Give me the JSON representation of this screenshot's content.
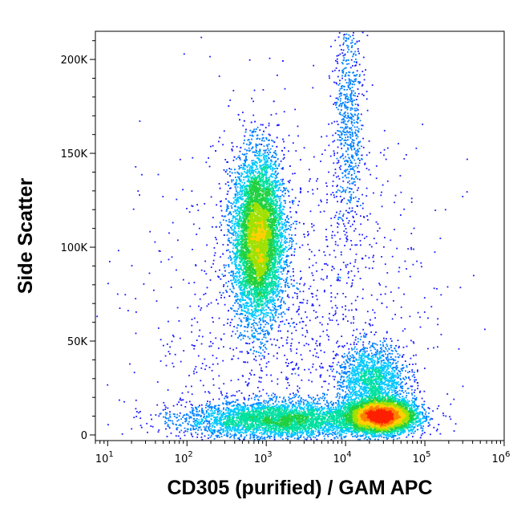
{
  "chart_data": {
    "type": "scatter",
    "subtype": "flow cytometry density dot plot",
    "xlabel": "CD305 (purified) / GAM APC",
    "ylabel": "Side Scatter",
    "x_scale": "log",
    "x_range": [
      7,
      1000000
    ],
    "y_range": [
      -3000,
      215000
    ],
    "x_ticks": [
      {
        "value": 10,
        "base": "10",
        "exp": "1"
      },
      {
        "value": 100,
        "base": "10",
        "exp": "2"
      },
      {
        "value": 1000,
        "base": "10",
        "exp": "3"
      },
      {
        "value": 10000,
        "base": "10",
        "exp": "4"
      },
      {
        "value": 100000,
        "base": "10",
        "exp": "5"
      },
      {
        "value": 1000000,
        "base": "10",
        "exp": "6"
      }
    ],
    "y_ticks": [
      {
        "value": 0,
        "label": "0"
      },
      {
        "value": 50000,
        "label": "50K"
      },
      {
        "value": 100000,
        "label": "100K"
      },
      {
        "value": 150000,
        "label": "150K"
      },
      {
        "value": 200000,
        "label": "200K"
      }
    ],
    "density_colormap": [
      "#1a1aff",
      "#0080ff",
      "#00c8ff",
      "#00e0a0",
      "#20d040",
      "#a0e000",
      "#ffd000",
      "#ff8000",
      "#ff2000"
    ],
    "populations": [
      {
        "name": "CD305-positive cluster",
        "x_center": 800,
        "y_center": 105000,
        "x_spread_log": 0.16,
        "y_spread": 22000,
        "count": 9000
      },
      {
        "name": "bright low-SSC cluster",
        "x_center": 28000,
        "y_center": 10000,
        "x_spread_log": 0.22,
        "y_spread": 4500,
        "count": 5500
      },
      {
        "name": "intermediate-SSC cluster",
        "x_center": 22000,
        "y_center": 30000,
        "x_spread_log": 0.22,
        "y_spread": 9000,
        "count": 1600
      },
      {
        "name": "dim low-SSC band",
        "x_center": 1500,
        "y_center": 8000,
        "x_spread_log": 0.6,
        "y_spread": 5000,
        "count": 4000
      },
      {
        "name": "high-SSC streak",
        "x_center": 11000,
        "y_center": 165000,
        "x_spread_log": 0.1,
        "y_spread": 35000,
        "count": 800
      },
      {
        "name": "scattered events",
        "x_center": 2000,
        "y_center": 60000,
        "x_spread_log": 0.9,
        "y_spread": 50000,
        "count": 1400
      }
    ]
  }
}
